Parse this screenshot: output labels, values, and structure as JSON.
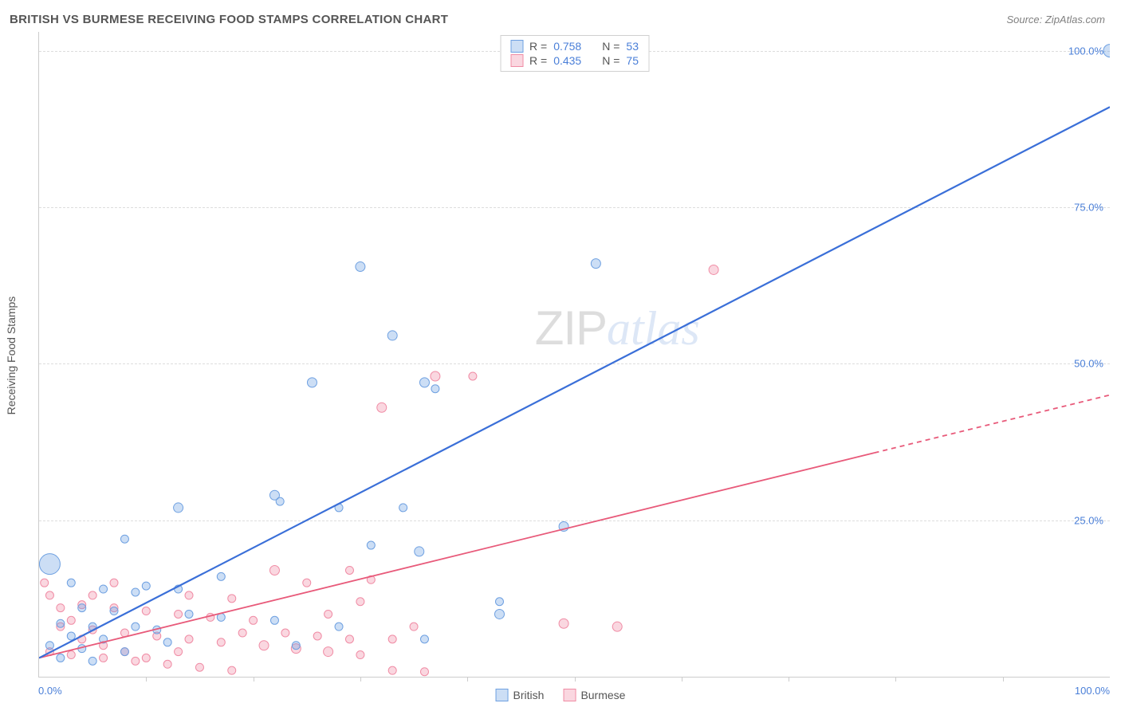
{
  "header": {
    "title": "BRITISH VS BURMESE RECEIVING FOOD STAMPS CORRELATION CHART",
    "source": "Source: ZipAtlas.com"
  },
  "watermark": {
    "part1": "ZIP",
    "part2": "atlas"
  },
  "axes": {
    "ylabel": "Receiving Food Stamps",
    "xlim": [
      0,
      100
    ],
    "ylim": [
      0,
      103
    ],
    "ytick_values": [
      25,
      50,
      75,
      100
    ],
    "ytick_labels": [
      "25.0%",
      "50.0%",
      "75.0%",
      "100.0%"
    ],
    "xtick_minor": [
      10,
      20,
      30,
      40,
      50,
      60,
      70,
      80,
      90
    ],
    "xtick_left_label": "0.0%",
    "xtick_right_label": "100.0%",
    "tick_label_color": "#4a7fd8",
    "grid_color": "#dddddd",
    "axis_color": "#cccccc"
  },
  "series": {
    "british": {
      "label": "British",
      "color_fill": "rgba(110,160,225,0.35)",
      "color_stroke": "#6ea0e1",
      "trend_color": "#3a6fd8",
      "trend_width": 2.2,
      "trend": {
        "x1": 0,
        "y1": 3,
        "x2": 100,
        "y2": 91
      },
      "stats": {
        "r_label": "R =",
        "r": "0.758",
        "n_label": "N =",
        "n": "53"
      },
      "points": [
        {
          "x": 1,
          "y": 18,
          "r": 13
        },
        {
          "x": 100,
          "y": 100,
          "r": 8
        },
        {
          "x": 30,
          "y": 65.5,
          "r": 6
        },
        {
          "x": 52,
          "y": 66,
          "r": 6
        },
        {
          "x": 33,
          "y": 54.5,
          "r": 6
        },
        {
          "x": 25.5,
          "y": 47,
          "r": 6
        },
        {
          "x": 36,
          "y": 47,
          "r": 6
        },
        {
          "x": 37,
          "y": 46,
          "r": 5
        },
        {
          "x": 13,
          "y": 27,
          "r": 6
        },
        {
          "x": 22,
          "y": 29,
          "r": 6
        },
        {
          "x": 22.5,
          "y": 28,
          "r": 5
        },
        {
          "x": 28,
          "y": 27,
          "r": 5
        },
        {
          "x": 34,
          "y": 27,
          "r": 5
        },
        {
          "x": 49,
          "y": 24,
          "r": 6
        },
        {
          "x": 8,
          "y": 22,
          "r": 5
        },
        {
          "x": 31,
          "y": 21,
          "r": 5
        },
        {
          "x": 35.5,
          "y": 20,
          "r": 6
        },
        {
          "x": 17,
          "y": 16,
          "r": 5
        },
        {
          "x": 3,
          "y": 15,
          "r": 5
        },
        {
          "x": 6,
          "y": 14,
          "r": 5
        },
        {
          "x": 9,
          "y": 13.5,
          "r": 5
        },
        {
          "x": 10,
          "y": 14.5,
          "r": 5
        },
        {
          "x": 13,
          "y": 14,
          "r": 5
        },
        {
          "x": 43,
          "y": 12,
          "r": 5
        },
        {
          "x": 4,
          "y": 11,
          "r": 5
        },
        {
          "x": 7,
          "y": 10.5,
          "r": 5
        },
        {
          "x": 14,
          "y": 10,
          "r": 5
        },
        {
          "x": 17,
          "y": 9.5,
          "r": 5
        },
        {
          "x": 22,
          "y": 9,
          "r": 5
        },
        {
          "x": 2,
          "y": 8.5,
          "r": 5
        },
        {
          "x": 5,
          "y": 8,
          "r": 5
        },
        {
          "x": 9,
          "y": 8,
          "r": 5
        },
        {
          "x": 11,
          "y": 7.5,
          "r": 5
        },
        {
          "x": 3,
          "y": 6.5,
          "r": 5
        },
        {
          "x": 6,
          "y": 6,
          "r": 5
        },
        {
          "x": 12,
          "y": 5.5,
          "r": 5
        },
        {
          "x": 1,
          "y": 5,
          "r": 5
        },
        {
          "x": 4,
          "y": 4.5,
          "r": 5
        },
        {
          "x": 8,
          "y": 4,
          "r": 5
        },
        {
          "x": 2,
          "y": 3,
          "r": 5
        },
        {
          "x": 5,
          "y": 2.5,
          "r": 5
        },
        {
          "x": 43,
          "y": 10,
          "r": 6
        },
        {
          "x": 36,
          "y": 6,
          "r": 5
        },
        {
          "x": 24,
          "y": 5,
          "r": 5
        },
        {
          "x": 28,
          "y": 8,
          "r": 5
        }
      ]
    },
    "burmese": {
      "label": "Burmese",
      "color_fill": "rgba(240,140,165,0.35)",
      "color_stroke": "#f08ca5",
      "trend_color": "#e85a7a",
      "trend_width": 1.8,
      "trend": {
        "x1": 0,
        "y1": 3,
        "x2": 100,
        "y2": 45
      },
      "trend_dash_from": 78,
      "stats": {
        "r_label": "R =",
        "r": "0.435",
        "n_label": "N =",
        "n": "75"
      },
      "points": [
        {
          "x": 63,
          "y": 65,
          "r": 6
        },
        {
          "x": 37,
          "y": 48,
          "r": 6
        },
        {
          "x": 40.5,
          "y": 48,
          "r": 5
        },
        {
          "x": 32,
          "y": 43,
          "r": 6
        },
        {
          "x": 22,
          "y": 17,
          "r": 6
        },
        {
          "x": 29,
          "y": 17,
          "r": 5
        },
        {
          "x": 25,
          "y": 15,
          "r": 5
        },
        {
          "x": 31,
          "y": 15.5,
          "r": 5
        },
        {
          "x": 14,
          "y": 13,
          "r": 5
        },
        {
          "x": 18,
          "y": 12.5,
          "r": 5
        },
        {
          "x": 4,
          "y": 11.5,
          "r": 5
        },
        {
          "x": 7,
          "y": 11,
          "r": 5
        },
        {
          "x": 10,
          "y": 10.5,
          "r": 5
        },
        {
          "x": 13,
          "y": 10,
          "r": 5
        },
        {
          "x": 16,
          "y": 9.5,
          "r": 5
        },
        {
          "x": 20,
          "y": 9,
          "r": 5
        },
        {
          "x": 49,
          "y": 8.5,
          "r": 6
        },
        {
          "x": 54,
          "y": 8,
          "r": 6
        },
        {
          "x": 2,
          "y": 8,
          "r": 5
        },
        {
          "x": 5,
          "y": 7.5,
          "r": 5
        },
        {
          "x": 8,
          "y": 7,
          "r": 5
        },
        {
          "x": 11,
          "y": 6.5,
          "r": 5
        },
        {
          "x": 14,
          "y": 6,
          "r": 5
        },
        {
          "x": 17,
          "y": 5.5,
          "r": 5
        },
        {
          "x": 21,
          "y": 5,
          "r": 6
        },
        {
          "x": 24,
          "y": 4.5,
          "r": 6
        },
        {
          "x": 27,
          "y": 4,
          "r": 6
        },
        {
          "x": 30,
          "y": 3.5,
          "r": 5
        },
        {
          "x": 1,
          "y": 4,
          "r": 5
        },
        {
          "x": 3,
          "y": 3.5,
          "r": 5
        },
        {
          "x": 6,
          "y": 3,
          "r": 5
        },
        {
          "x": 9,
          "y": 2.5,
          "r": 5
        },
        {
          "x": 12,
          "y": 2,
          "r": 5
        },
        {
          "x": 15,
          "y": 1.5,
          "r": 5
        },
        {
          "x": 18,
          "y": 1,
          "r": 5
        },
        {
          "x": 33,
          "y": 1,
          "r": 5
        },
        {
          "x": 36,
          "y": 0.8,
          "r": 5
        },
        {
          "x": 2,
          "y": 11,
          "r": 5
        },
        {
          "x": 1,
          "y": 13,
          "r": 5
        },
        {
          "x": 0.5,
          "y": 15,
          "r": 5
        },
        {
          "x": 5,
          "y": 13,
          "r": 5
        },
        {
          "x": 7,
          "y": 15,
          "r": 5
        },
        {
          "x": 3,
          "y": 9,
          "r": 5
        },
        {
          "x": 4,
          "y": 6,
          "r": 5
        },
        {
          "x": 6,
          "y": 5,
          "r": 5
        },
        {
          "x": 8,
          "y": 4,
          "r": 5
        },
        {
          "x": 10,
          "y": 3,
          "r": 5
        },
        {
          "x": 13,
          "y": 4,
          "r": 5
        },
        {
          "x": 19,
          "y": 7,
          "r": 5
        },
        {
          "x": 23,
          "y": 7,
          "r": 5
        },
        {
          "x": 26,
          "y": 6.5,
          "r": 5
        },
        {
          "x": 29,
          "y": 6,
          "r": 5
        },
        {
          "x": 27,
          "y": 10,
          "r": 5
        },
        {
          "x": 30,
          "y": 12,
          "r": 5
        },
        {
          "x": 33,
          "y": 6,
          "r": 5
        },
        {
          "x": 35,
          "y": 8,
          "r": 5
        }
      ]
    }
  },
  "legend_bottom": {
    "items": [
      {
        "key": "british",
        "label": "British"
      },
      {
        "key": "burmese",
        "label": "Burmese"
      }
    ]
  }
}
